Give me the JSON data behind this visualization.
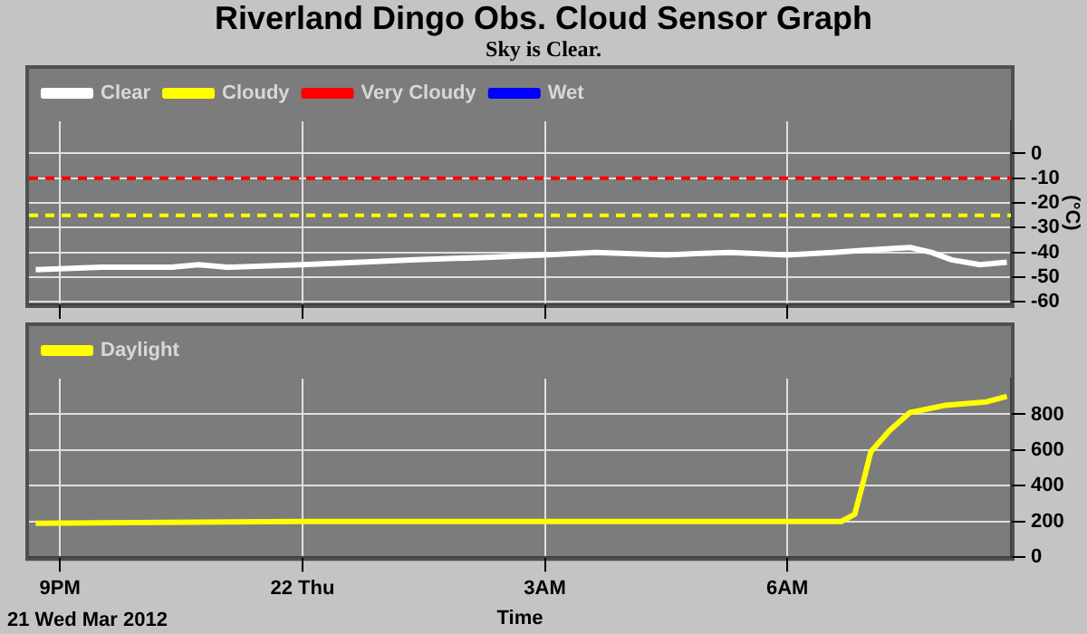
{
  "chart_data": [
    {
      "type": "line",
      "title": "Riverland Dingo Obs. Cloud Sensor Graph",
      "subtitle": "Sky is Clear.",
      "y2label": "(°C)",
      "xlim": [
        "2012-03-21T20:37",
        "2012-03-22T08:46"
      ],
      "xticks": [
        {
          "value": "2012-03-21T21:00",
          "label": null
        },
        {
          "value": "2012-03-22T00:00",
          "label": null
        },
        {
          "value": "2012-03-22T03:00",
          "label": null
        },
        {
          "value": "2012-03-22T06:00",
          "label": null
        }
      ],
      "y2lim": [
        -61,
        13
      ],
      "y2ticks": [
        -60,
        -50,
        -40,
        -30,
        -20,
        -10,
        0
      ],
      "tick_labels": "y",
      "grid": true,
      "legend": "top left",
      "marker": "none",
      "line_style": "solid",
      "ref_lines": [
        {
          "axis": "y2",
          "value": -10,
          "color": "#ff0000",
          "line_style": "dashed"
        },
        {
          "axis": "y2",
          "value": -25,
          "color": "#ffff00",
          "line_style": "dashed"
        }
      ],
      "series": [
        {
          "name": "Clear",
          "color": "#ffffff",
          "axis": "y2",
          "x": [
            "2012-03-21T20:42",
            "2012-03-21T21:31",
            "2012-03-21T22:23",
            "2012-03-21T22:43",
            "2012-03-21T23:04",
            "2012-03-22T00:00",
            "2012-03-22T00:43",
            "2012-03-22T01:24",
            "2012-03-22T02:16",
            "2012-03-22T03:00",
            "2012-03-22T03:38",
            "2012-03-22T04:30",
            "2012-03-22T05:17",
            "2012-03-22T06:00",
            "2012-03-22T06:34",
            "2012-03-22T07:00",
            "2012-03-22T07:31",
            "2012-03-22T07:47",
            "2012-03-22T08:02",
            "2012-03-22T08:23",
            "2012-03-22T08:43"
          ],
          "values": [
            -47,
            -46,
            -46,
            -45,
            -46,
            -45,
            -44,
            -43,
            -42,
            -41,
            -40,
            -41,
            -40,
            -41,
            -40,
            -39,
            -38,
            -40,
            -43,
            -45,
            -44
          ]
        },
        {
          "name": "Cloudy",
          "color": "#ffff00",
          "axis": "y2"
        },
        {
          "name": "Very Cloudy",
          "color": "#ff0000",
          "axis": "y2"
        },
        {
          "name": "Wet",
          "color": "#0000ff",
          "axis": "y2"
        }
      ]
    },
    {
      "type": "line",
      "xlabel": "Time",
      "annotations": [
        "21 Wed Mar 2012"
      ],
      "xlim": [
        "2012-03-21T20:37",
        "2012-03-22T08:46"
      ],
      "xticks": [
        {
          "value": "2012-03-21T21:00",
          "label": "9PM"
        },
        {
          "value": "2012-03-22T00:00",
          "label": "22 Thu"
        },
        {
          "value": "2012-03-22T03:00",
          "label": "3AM"
        },
        {
          "value": "2012-03-22T06:00",
          "label": "6AM"
        }
      ],
      "y2lim": [
        0,
        1000
      ],
      "y2ticks": [
        0,
        200,
        400,
        600,
        800
      ],
      "grid": true,
      "legend": "top left",
      "marker": "none",
      "line_style": "solid",
      "series": [
        {
          "name": "Daylight",
          "color": "#ffff00",
          "axis": "y2",
          "x": [
            "2012-03-21T20:42",
            "2012-03-22T00:00",
            "2012-03-22T03:00",
            "2012-03-22T06:00",
            "2012-03-22T06:40",
            "2012-03-22T06:50",
            "2012-03-22T06:56",
            "2012-03-22T07:02",
            "2012-03-22T07:16",
            "2012-03-22T07:31",
            "2012-03-22T07:57",
            "2012-03-22T08:28",
            "2012-03-22T08:43"
          ],
          "values": [
            190,
            200,
            200,
            200,
            200,
            240,
            410,
            590,
            710,
            810,
            850,
            870,
            900
          ]
        }
      ]
    }
  ]
}
